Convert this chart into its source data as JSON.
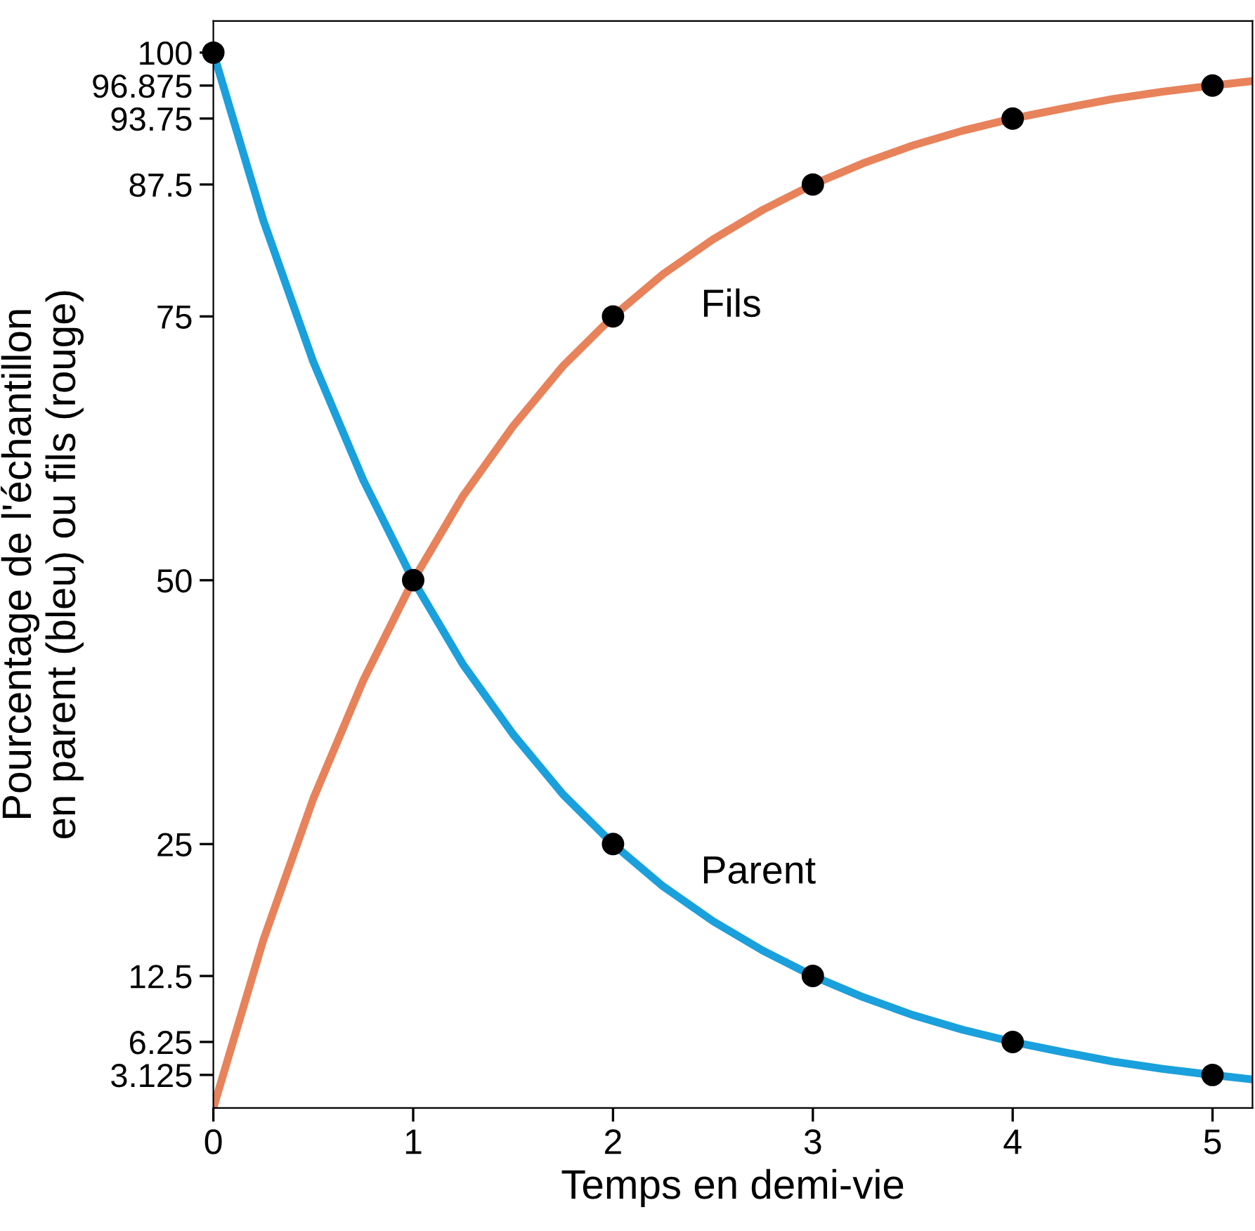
{
  "chart_data": {
    "type": "line",
    "xlabel": "Temps en demi-vie",
    "ylabel": "Pourcentage de l'échantillon\nen parent (bleu) ou fils (rouge)",
    "x": [
      0,
      0.25,
      0.5,
      0.75,
      1,
      1.25,
      1.5,
      1.75,
      2,
      2.25,
      2.5,
      2.75,
      3,
      3.25,
      3.5,
      3.75,
      4,
      4.25,
      4.5,
      4.75,
      5,
      5.2
    ],
    "series": [
      {
        "name": "Parent",
        "color": "#1aa0dc",
        "values": [
          100,
          84.1,
          70.7,
          59.5,
          50,
          42.0,
          35.4,
          29.7,
          25,
          21.0,
          17.7,
          14.9,
          12.5,
          10.5,
          8.8,
          7.4,
          6.25,
          5.3,
          4.4,
          3.7,
          3.125,
          2.7
        ]
      },
      {
        "name": "Fils",
        "color": "#e8825a",
        "values": [
          0,
          15.9,
          29.3,
          40.5,
          50,
          58.0,
          64.6,
          70.3,
          75,
          79.0,
          82.3,
          85.1,
          87.5,
          89.5,
          91.2,
          92.6,
          93.75,
          94.7,
          95.6,
          96.3,
          96.875,
          97.3
        ]
      },
      {
        "type": "scatter",
        "color": "#000000",
        "marker": "circle",
        "x": [
          0,
          1,
          2,
          3,
          4,
          5,
          2,
          3,
          4,
          5
        ],
        "values": [
          100,
          50,
          25,
          12.5,
          6.25,
          3.125,
          75,
          87.5,
          93.75,
          96.875
        ]
      }
    ],
    "marker": "none",
    "line_style": "solid",
    "grid": false,
    "legend": false,
    "xlim": [
      0,
      5.2
    ],
    "xticks": [
      0,
      1,
      2,
      3,
      4,
      5
    ],
    "ylim": [
      0,
      103
    ],
    "yticks": [
      3.125,
      6.25,
      12.5,
      25,
      50,
      75,
      87.5,
      93.75,
      96.875,
      100
    ]
  }
}
